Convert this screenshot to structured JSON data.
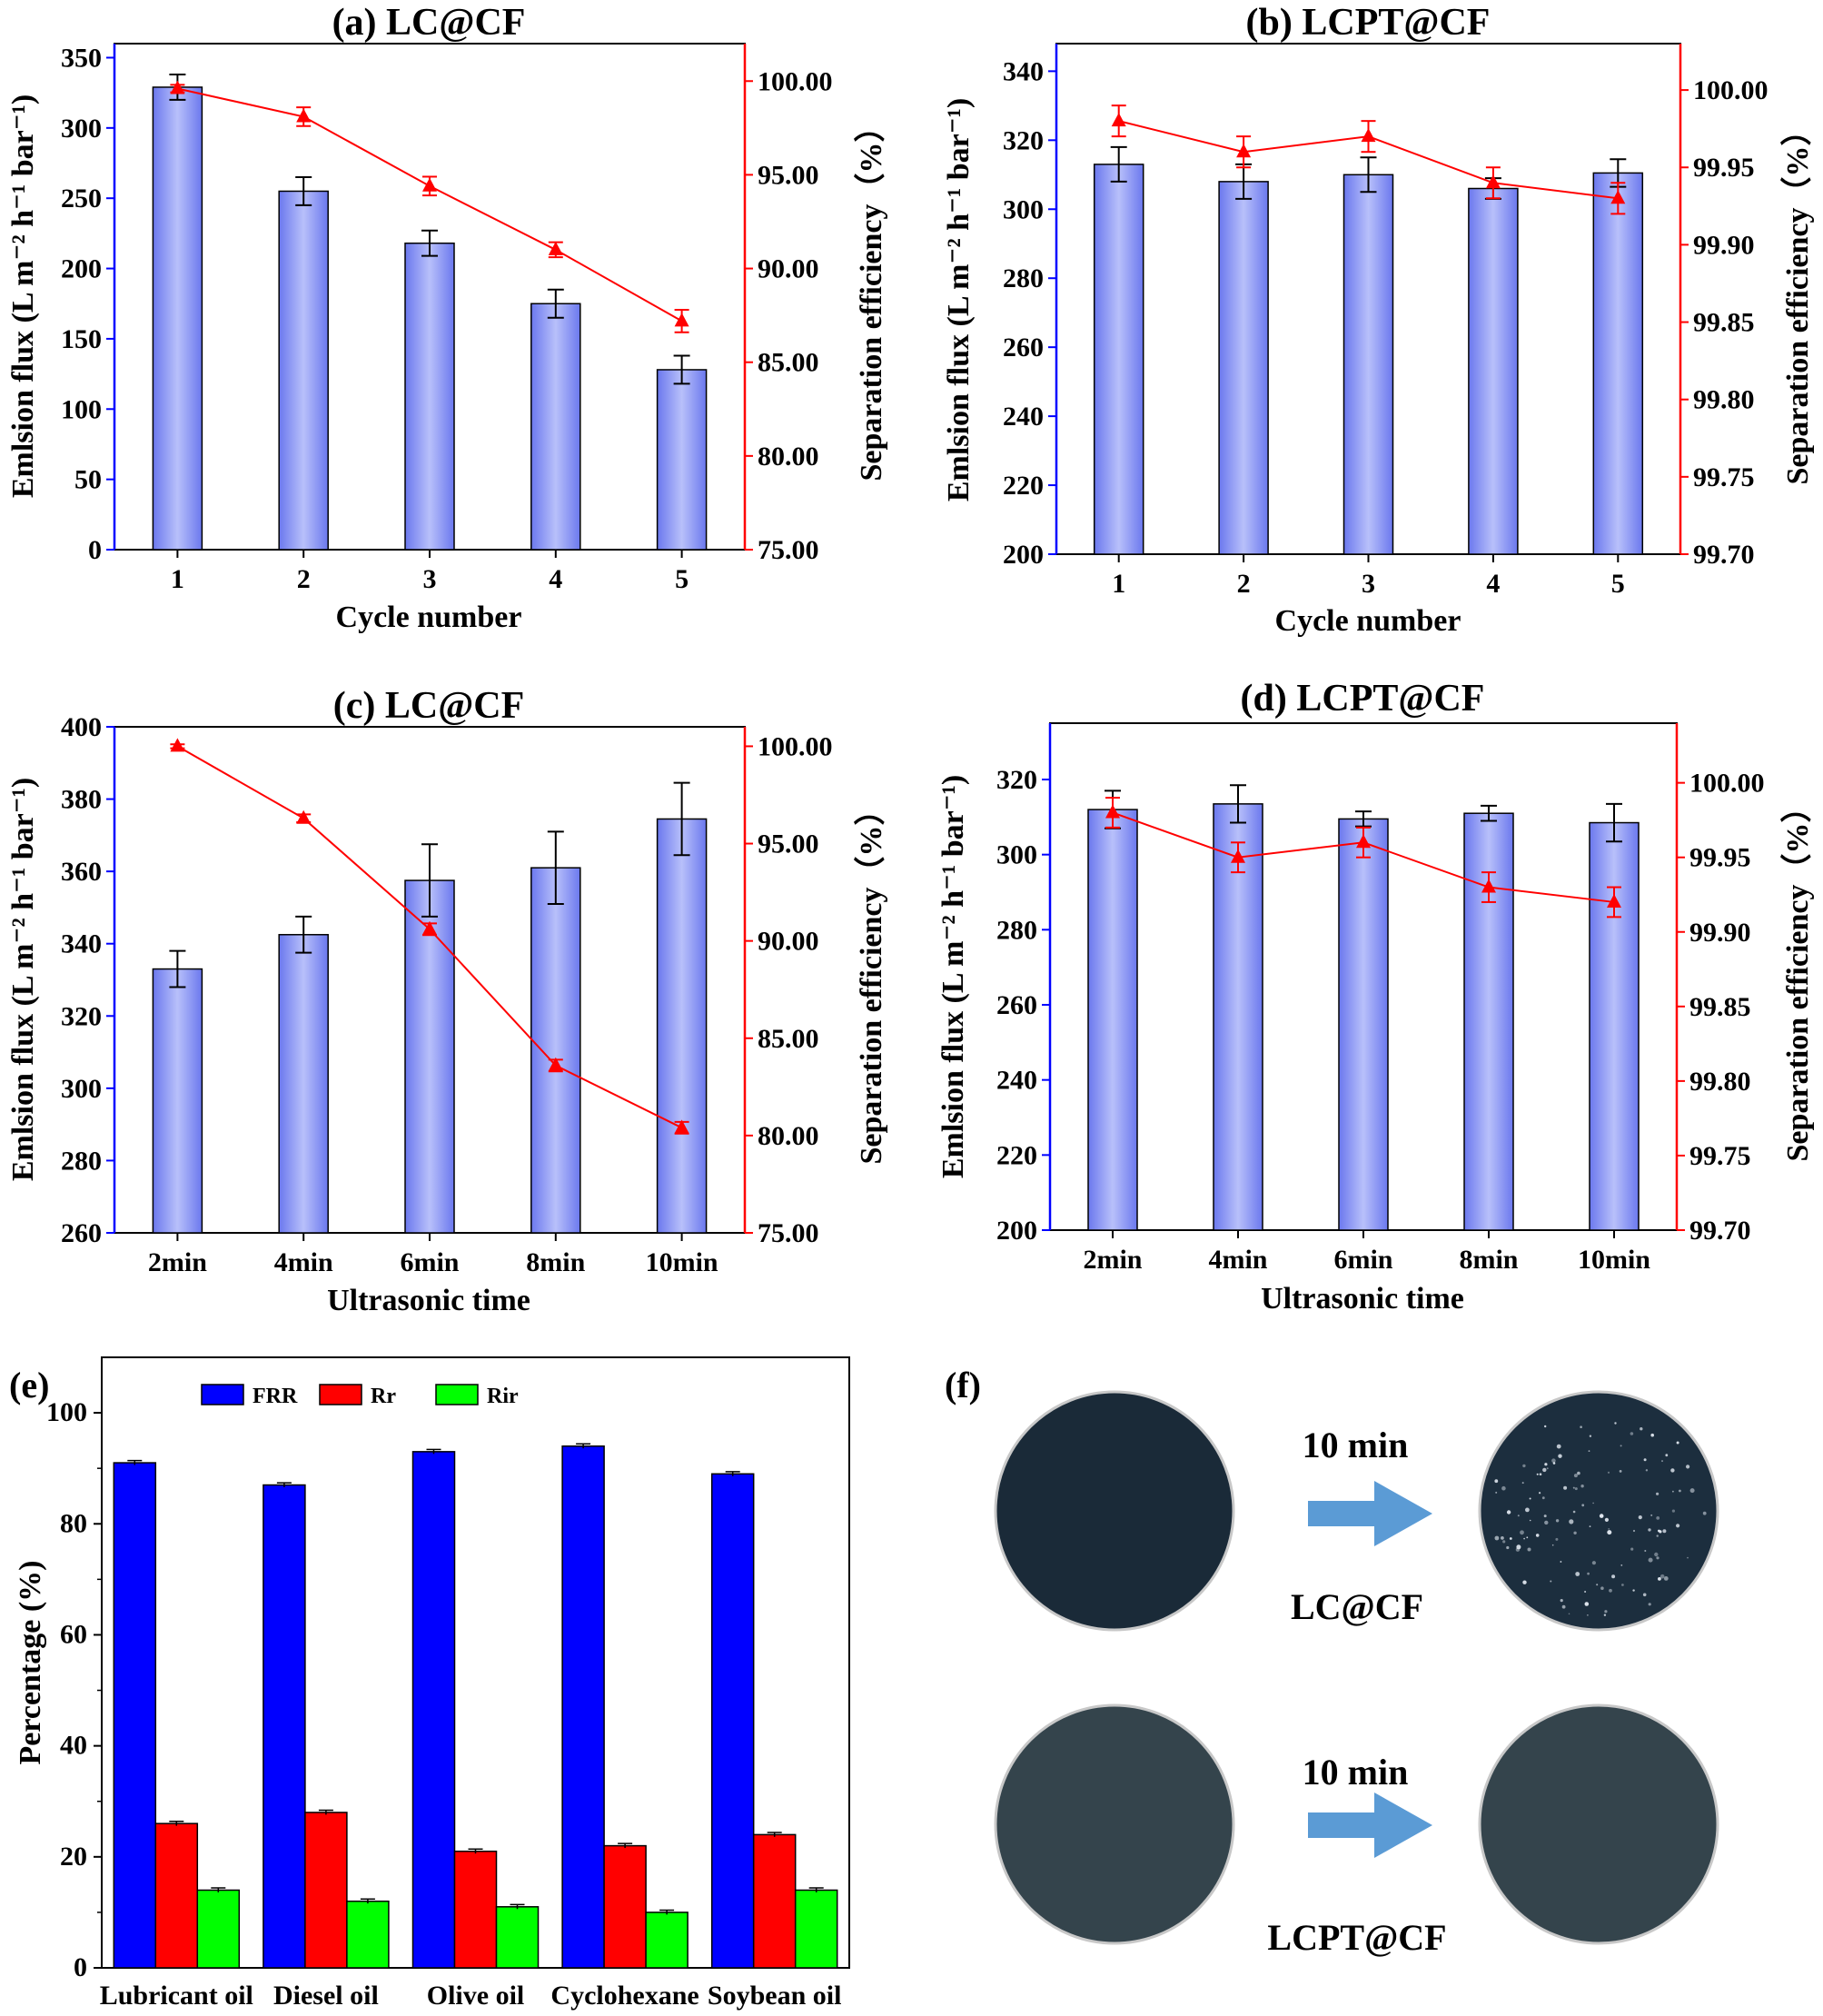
{
  "colors": {
    "flux_axis": "#0000ff",
    "efficiency": "#ff0000",
    "bar_fill": "#8f99f5",
    "FRR": "#0000ff",
    "Rr": "#ff0000",
    "Rir": "#00ff00",
    "arrow": "#5b9bd5"
  },
  "chart_data": [
    {
      "panel": "a",
      "type": "bar+line",
      "title": "(a) LC@CF",
      "xlabel": "Cycle number",
      "ylabel_left": "Emlsion flux (L m⁻² h⁻¹ bar⁻¹)",
      "ylabel_right": "Separation efficiency（%）",
      "categories": [
        "1",
        "2",
        "3",
        "4",
        "5"
      ],
      "ylim_left": [
        0,
        360
      ],
      "yticks_left": [
        "0",
        "50",
        "100",
        "150",
        "200",
        "250",
        "300",
        "350"
      ],
      "ylim_right": [
        75,
        102
      ],
      "yticks_right": [
        "75.00",
        "80.00",
        "85.00",
        "90.00",
        "95.00",
        "100.00"
      ],
      "series": [
        {
          "axis": "left",
          "kind": "bar",
          "values": [
            329,
            255,
            218,
            175,
            128
          ],
          "errors": [
            9,
            10,
            9,
            10,
            10
          ]
        },
        {
          "axis": "right",
          "kind": "line",
          "values": [
            99.6,
            98.1,
            94.4,
            91.0,
            87.2
          ],
          "errors": [
            0.2,
            0.5,
            0.5,
            0.4,
            0.6
          ]
        }
      ]
    },
    {
      "panel": "b",
      "type": "bar+line",
      "title": "(b) LCPT@CF",
      "xlabel": "Cycle number",
      "ylabel_left": "Emlsion flux (L m⁻² h⁻¹ bar⁻¹)",
      "ylabel_right": "Separation efficiency（%）",
      "categories": [
        "1",
        "2",
        "3",
        "4",
        "5"
      ],
      "ylim_left": [
        200,
        348
      ],
      "yticks_left": [
        "200",
        "220",
        "240",
        "260",
        "280",
        "300",
        "320",
        "340"
      ],
      "ylim_right": [
        99.7,
        100.03
      ],
      "yticks_right": [
        "99.70",
        "99.75",
        "99.80",
        "99.85",
        "99.90",
        "99.95",
        "100.00"
      ],
      "series": [
        {
          "axis": "left",
          "kind": "bar",
          "values": [
            313,
            308,
            310,
            306,
            310.5
          ],
          "errors": [
            5,
            5,
            5,
            3,
            4
          ]
        },
        {
          "axis": "right",
          "kind": "line",
          "values": [
            99.98,
            99.96,
            99.97,
            99.94,
            99.93
          ],
          "errors": [
            0.01,
            0.01,
            0.01,
            0.01,
            0.01
          ]
        }
      ]
    },
    {
      "panel": "c",
      "type": "bar+line",
      "title": "(c) LC@CF",
      "xlabel": "Ultrasonic time",
      "ylabel_left": "Emlsion flux (L m⁻² h⁻¹ bar⁻¹)",
      "ylabel_right": "Separation efficiency（%）",
      "categories": [
        "2min",
        "4min",
        "6min",
        "8min",
        "10min"
      ],
      "ylim_left": [
        260,
        400
      ],
      "yticks_left": [
        "260",
        "280",
        "300",
        "320",
        "340",
        "360",
        "380",
        "400"
      ],
      "ylim_right": [
        75,
        101
      ],
      "yticks_right": [
        "75.00",
        "80.00",
        "85.00",
        "90.00",
        "95.00",
        "100.00"
      ],
      "series": [
        {
          "axis": "left",
          "kind": "bar",
          "values": [
            333,
            342.5,
            357.5,
            361,
            374.5
          ],
          "errors": [
            5,
            5,
            10,
            10,
            10
          ]
        },
        {
          "axis": "right",
          "kind": "line",
          "values": [
            100.0,
            96.3,
            90.6,
            83.6,
            80.4
          ],
          "errors": [
            0.1,
            0.2,
            0.3,
            0.3,
            0.3
          ]
        }
      ]
    },
    {
      "panel": "d",
      "type": "bar+line",
      "title": "(d) LCPT@CF",
      "xlabel": "Ultrasonic time",
      "ylabel_left": "Emlsion flux (L m⁻² h⁻¹ bar⁻¹)",
      "ylabel_right": "Separation efficiency（%）",
      "categories": [
        "2min",
        "4min",
        "6min",
        "8min",
        "10min"
      ],
      "ylim_left": [
        200,
        335
      ],
      "yticks_left": [
        "200",
        "220",
        "240",
        "260",
        "280",
        "300",
        "320"
      ],
      "ylim_right": [
        99.7,
        100.04
      ],
      "yticks_right": [
        "99.70",
        "99.75",
        "99.80",
        "99.85",
        "99.90",
        "99.95",
        "100.00"
      ],
      "series": [
        {
          "axis": "left",
          "kind": "bar",
          "values": [
            312,
            313.5,
            309.5,
            311,
            308.5
          ],
          "errors": [
            5,
            5,
            2,
            2,
            5
          ]
        },
        {
          "axis": "right",
          "kind": "line",
          "values": [
            99.98,
            99.95,
            99.96,
            99.93,
            99.92
          ],
          "errors": [
            0.01,
            0.01,
            0.01,
            0.01,
            0.01
          ]
        }
      ]
    },
    {
      "panel": "e",
      "type": "bar",
      "title": "(e)",
      "ylabel": "Percentage (%)",
      "categories": [
        "Lubricant oil",
        "Diesel oil",
        "Olive oil",
        "Cyclohexane",
        "Soybean oil"
      ],
      "ylim": [
        0,
        110
      ],
      "yticks": [
        "0",
        "20",
        "40",
        "60",
        "80",
        "100"
      ],
      "legend": "top-left",
      "series": [
        {
          "name": "FRR",
          "values": [
            91,
            87,
            93,
            94,
            89
          ],
          "errors": [
            0.4,
            0.4,
            0.4,
            0.4,
            0.4
          ]
        },
        {
          "name": "Rr",
          "values": [
            26,
            28,
            21,
            22,
            24
          ],
          "errors": [
            0.4,
            0.4,
            0.4,
            0.4,
            0.4
          ]
        },
        {
          "name": "Rir",
          "values": [
            14,
            12,
            11,
            10,
            14
          ],
          "errors": [
            0.4,
            0.4,
            0.4,
            0.4,
            0.4
          ]
        }
      ]
    }
  ],
  "panel_f": {
    "label": "(f)",
    "rows": [
      {
        "arrow_text": "10 min",
        "sample_label": "LC@CF",
        "before_color": "#1a2a38",
        "after_color": "#1c2e3e"
      },
      {
        "arrow_text": "10 min",
        "sample_label": "LCPT@CF",
        "before_color": "#34444c",
        "after_color": "#34444c"
      }
    ]
  }
}
